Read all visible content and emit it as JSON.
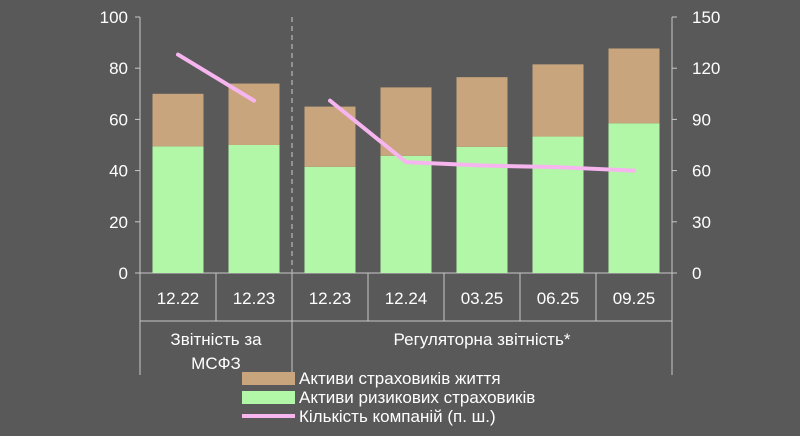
{
  "chart_data": {
    "type": "bar",
    "categories": [
      "12.22",
      "12.23",
      "12.23",
      "12.24",
      "03.25",
      "06.25",
      "09.25"
    ],
    "groups": [
      {
        "label_lines": [
          "Звітність за",
          "МСФЗ"
        ],
        "from": 0,
        "to": 1
      },
      {
        "label_lines": [
          "Регуляторна звітність*"
        ],
        "from": 2,
        "to": 6
      }
    ],
    "stacked": true,
    "series": [
      {
        "name": "Активи ризикових страховиків",
        "type": "bar",
        "axis": "left",
        "color": "#b2f7a8",
        "values": [
          49.5,
          50,
          41.5,
          45.8,
          49.3,
          53.3,
          58.5
        ]
      },
      {
        "name": "Активи страховиків життя",
        "type": "bar",
        "axis": "left",
        "color": "#c9a57d",
        "values": [
          20.5,
          24,
          23.5,
          26.7,
          27.2,
          28.2,
          29.2
        ]
      },
      {
        "name": "Кількість компаній (п. ш.)",
        "type": "line",
        "axis": "right",
        "color": "#f7b5ef",
        "segments": [
          [
            0,
            1
          ],
          [
            2,
            6
          ]
        ],
        "values": [
          128,
          101,
          101,
          65,
          63,
          62,
          60
        ]
      }
    ],
    "ylim_left": [
      0,
      100
    ],
    "yticks_left": [
      0,
      20,
      40,
      60,
      80,
      100
    ],
    "ylim_right": [
      0,
      150
    ],
    "yticks_right": [
      0,
      30,
      60,
      90,
      120,
      150
    ],
    "legend": {
      "position": "bottom",
      "entries": [
        {
          "label": "Активи страховиків життя",
          "kind": "box",
          "color": "#c9a57d"
        },
        {
          "label": "Активи ризикових страховиків",
          "kind": "box",
          "color": "#b2f7a8"
        },
        {
          "label": "Кількість компаній (п. ш.)",
          "kind": "line",
          "color": "#f7b5ef"
        }
      ]
    },
    "colors": {
      "background": "#595959",
      "text": "#ffffff",
      "axis": "#c8c8c8",
      "divider": "#a6a6a6"
    }
  }
}
